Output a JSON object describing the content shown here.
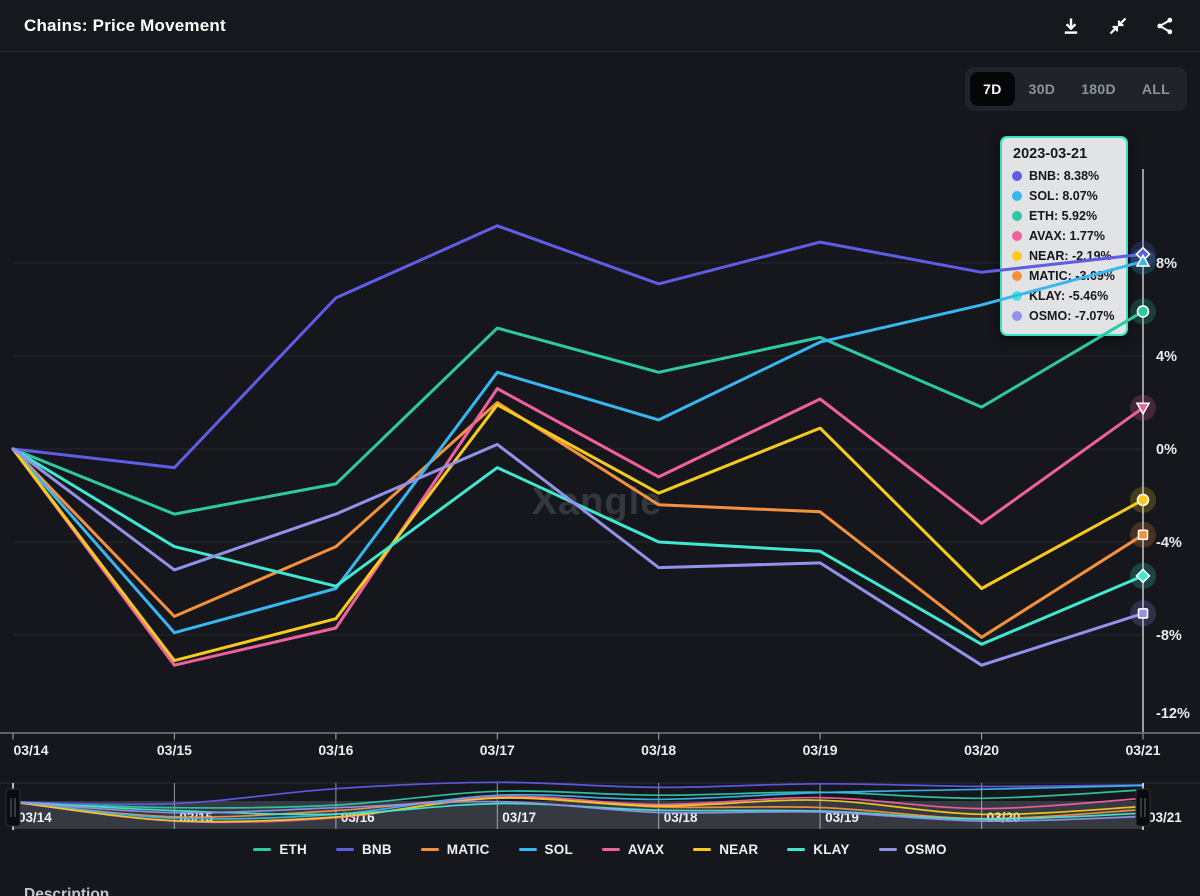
{
  "header": {
    "title": "Chains: Price Movement",
    "icons": [
      "download-icon",
      "collapse-icon",
      "share-icon"
    ]
  },
  "range_selector": {
    "options": [
      "7D",
      "30D",
      "180D",
      "ALL"
    ],
    "selected": "7D"
  },
  "tooltip": {
    "title": "2023-03-21",
    "border_color": "#3ae0c2",
    "items": [
      {
        "text": "BNB: 8.38%",
        "color": "#5f5ce6"
      },
      {
        "text": "SOL: 8.07%",
        "color": "#38b6f0"
      },
      {
        "text": "ETH: 5.92%",
        "color": "#2dc9a2"
      },
      {
        "text": "AVAX: 1.77%",
        "color": "#f0609f"
      },
      {
        "text": "NEAR: -2.19%",
        "color": "#f7cb1c"
      },
      {
        "text": "MATIC: -3.69%",
        "color": "#f5913d"
      },
      {
        "text": "KLAY: -5.46%",
        "color": "#40e8cf"
      },
      {
        "text": "OSMO: -7.07%",
        "color": "#9292ea"
      }
    ]
  },
  "chart_data": {
    "type": "line",
    "title": "Chains: Price Movement",
    "x": [
      "03/14",
      "03/15",
      "03/16",
      "03/17",
      "03/18",
      "03/19",
      "03/20",
      "03/21"
    ],
    "unit": "%",
    "y_ticks": [
      8,
      4,
      0,
      -4,
      -8,
      -12
    ],
    "y_tick_labels": [
      "8%",
      "4%",
      "0%",
      "-4%",
      "-8%",
      "-12%"
    ],
    "ylim": [
      -12.5,
      10.5
    ],
    "grid": true,
    "legend_position": "bottom",
    "watermark": "Xangle",
    "crosshair_date": "03/21",
    "series": [
      {
        "name": "ETH",
        "color": "#2dc9a2",
        "marker": "circle",
        "values": [
          0,
          -2.8,
          -1.5,
          5.2,
          3.3,
          4.8,
          1.8,
          5.92
        ]
      },
      {
        "name": "BNB",
        "color": "#5f5ce6",
        "marker": "diamond",
        "values": [
          0,
          -0.8,
          6.5,
          9.6,
          7.1,
          8.9,
          7.6,
          8.38
        ]
      },
      {
        "name": "MATIC",
        "color": "#f5913d",
        "marker": "square",
        "values": [
          0,
          -7.2,
          -4.2,
          2.0,
          -2.4,
          -2.7,
          -8.1,
          -3.69
        ]
      },
      {
        "name": "SOL",
        "color": "#38b6f0",
        "marker": "triangle-up",
        "values": [
          0,
          -7.9,
          -6.0,
          3.3,
          1.25,
          4.6,
          6.2,
          8.07
        ]
      },
      {
        "name": "AVAX",
        "color": "#f0609f",
        "marker": "triangle-down",
        "values": [
          0,
          -9.3,
          -7.7,
          2.6,
          -1.2,
          2.15,
          -3.2,
          1.77
        ]
      },
      {
        "name": "NEAR",
        "color": "#f7cb1c",
        "marker": "circle",
        "values": [
          0,
          -9.1,
          -7.3,
          1.9,
          -1.9,
          0.9,
          -6.0,
          -2.19
        ]
      },
      {
        "name": "KLAY",
        "color": "#40e8cf",
        "marker": "diamond",
        "values": [
          0,
          -4.2,
          -5.9,
          -0.8,
          -4.0,
          -4.4,
          -8.4,
          -5.46
        ]
      },
      {
        "name": "OSMO",
        "color": "#9292ea",
        "marker": "square",
        "values": [
          0,
          -5.2,
          -2.8,
          0.2,
          -5.1,
          -4.9,
          -9.3,
          -7.07
        ]
      }
    ]
  },
  "navigator": {
    "labels": [
      "03/14",
      "03/15",
      "03/16",
      "03/17",
      "03/18",
      "03/19",
      "03/20",
      "03/21"
    ]
  },
  "description": {
    "label": "Description"
  }
}
